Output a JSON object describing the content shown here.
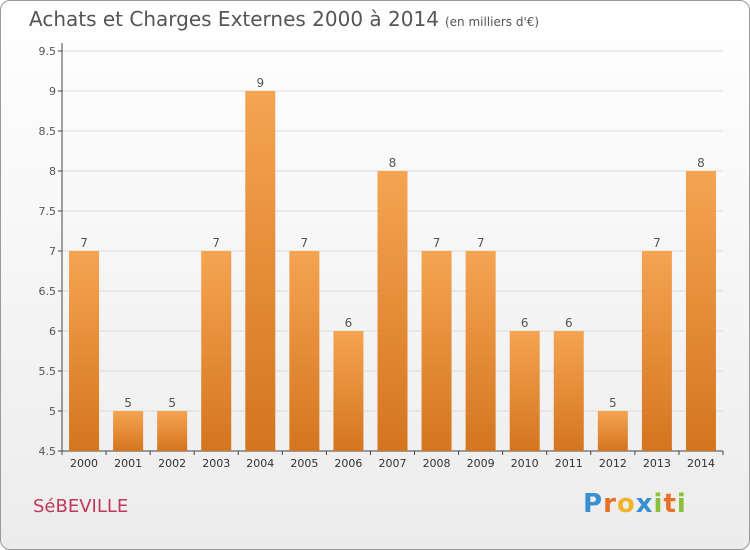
{
  "title": "Achats et Charges Externes 2000 à 2014",
  "unit": "(en milliers d'€)",
  "city": "SéBEVILLE",
  "logo": {
    "letters": [
      {
        "ch": "P",
        "color": "#3a8fd0"
      },
      {
        "ch": "r",
        "color": "#e8712a"
      },
      {
        "ch": "o",
        "color": "#f2b32a"
      },
      {
        "ch": "x",
        "color": "#3a8fd0"
      },
      {
        "ch": "i",
        "color": "#8cbf3a"
      },
      {
        "ch": "t",
        "color": "#e8712a"
      },
      {
        "ch": "i",
        "color": "#8cbf3a"
      }
    ]
  },
  "chart_data": {
    "type": "bar",
    "categories": [
      "2000",
      "2001",
      "2002",
      "2003",
      "2004",
      "2005",
      "2006",
      "2007",
      "2008",
      "2009",
      "2010",
      "2011",
      "2012",
      "2013",
      "2014"
    ],
    "values": [
      7,
      5,
      5,
      7,
      9,
      7,
      6,
      8,
      7,
      7,
      6,
      6,
      5,
      7,
      8
    ],
    "ylim": [
      4.5,
      9.5
    ],
    "yticks": [
      "4.5",
      "5",
      "5.5",
      "6",
      "6.5",
      "7",
      "7.5",
      "8",
      "8.5",
      "9",
      "9.5"
    ],
    "grid": true,
    "colors": {
      "bar_top": "#f5a452",
      "bar_bottom": "#d4751f",
      "grid": "#dcdcdc",
      "axis": "#444444",
      "label": "#555555"
    }
  }
}
